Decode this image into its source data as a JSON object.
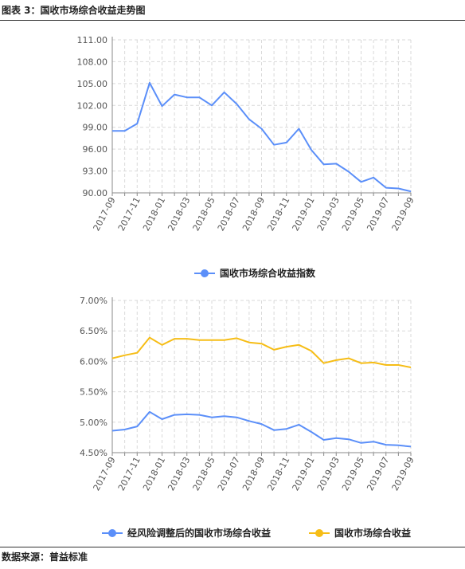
{
  "header": {
    "title": "图表 3：国收市场综合收益走势图"
  },
  "footer": {
    "source": "数据来源：普益标准"
  },
  "colors": {
    "blue": "#5b8ff9",
    "gold": "#f6bd16",
    "grid": "#d9d9d9",
    "axis": "#888888"
  },
  "chart_data": [
    {
      "type": "line",
      "categories": [
        "2017-09",
        "2017-10",
        "2017-11",
        "2017-12",
        "2018-01",
        "2018-02",
        "2018-03",
        "2018-04",
        "2018-05",
        "2018-06",
        "2018-07",
        "2018-08",
        "2018-09",
        "2018-10",
        "2018-11",
        "2018-12",
        "2019-01",
        "2019-02",
        "2019-03",
        "2019-04",
        "2019-05",
        "2019-06",
        "2019-07",
        "2019-08",
        "2019-09"
      ],
      "tick_labels": [
        "2017-09",
        "2017-11",
        "2018-01",
        "2018-03",
        "2018-05",
        "2018-07",
        "2018-09",
        "2018-11",
        "2019-01",
        "2019-03",
        "2019-05",
        "2019-07",
        "2019-09"
      ],
      "y_ticks": [
        "90.00",
        "93.00",
        "96.00",
        "99.00",
        "102.00",
        "105.00",
        "108.00",
        "111.00"
      ],
      "ylim": [
        90,
        111
      ],
      "grid": true,
      "legend_position": "bottom",
      "series": [
        {
          "name": "国收市场综合收益指数",
          "values": [
            98.5,
            98.5,
            99.5,
            105.1,
            101.9,
            103.5,
            103.1,
            103.1,
            102.0,
            103.8,
            102.2,
            100.1,
            98.8,
            96.6,
            96.9,
            98.8,
            95.9,
            93.9,
            94.0,
            92.9,
            91.5,
            92.1,
            90.7,
            90.6,
            90.2
          ]
        }
      ]
    },
    {
      "type": "line",
      "categories": [
        "2017-09",
        "2017-10",
        "2017-11",
        "2017-12",
        "2018-01",
        "2018-02",
        "2018-03",
        "2018-04",
        "2018-05",
        "2018-06",
        "2018-07",
        "2018-08",
        "2018-09",
        "2018-10",
        "2018-11",
        "2018-12",
        "2019-01",
        "2019-02",
        "2019-03",
        "2019-04",
        "2019-05",
        "2019-06",
        "2019-07",
        "2019-08",
        "2019-09"
      ],
      "tick_labels": [
        "2017-09",
        "2017-11",
        "2018-01",
        "2018-03",
        "2018-05",
        "2018-07",
        "2018-09",
        "2018-11",
        "2019-01",
        "2019-03",
        "2019-05",
        "2019-07",
        "2019-09"
      ],
      "y_ticks": [
        "4.50%",
        "5.00%",
        "5.50%",
        "6.00%",
        "6.50%",
        "7.00%"
      ],
      "ylim": [
        4.5,
        7.0
      ],
      "grid": true,
      "legend_position": "bottom",
      "series": [
        {
          "name": "经风险调整后的国收市场综合收益",
          "values": [
            4.86,
            4.88,
            4.93,
            5.17,
            5.05,
            5.12,
            5.13,
            5.12,
            5.08,
            5.1,
            5.08,
            5.02,
            4.97,
            4.87,
            4.89,
            4.96,
            4.84,
            4.71,
            4.74,
            4.72,
            4.66,
            4.68,
            4.63,
            4.62,
            4.6
          ]
        },
        {
          "name": "国收市场综合收益",
          "values": [
            6.05,
            6.1,
            6.14,
            6.39,
            6.27,
            6.37,
            6.37,
            6.35,
            6.35,
            6.35,
            6.38,
            6.31,
            6.29,
            6.19,
            6.24,
            6.27,
            6.17,
            5.97,
            6.02,
            6.05,
            5.97,
            5.98,
            5.94,
            5.94,
            5.9
          ]
        }
      ]
    }
  ]
}
